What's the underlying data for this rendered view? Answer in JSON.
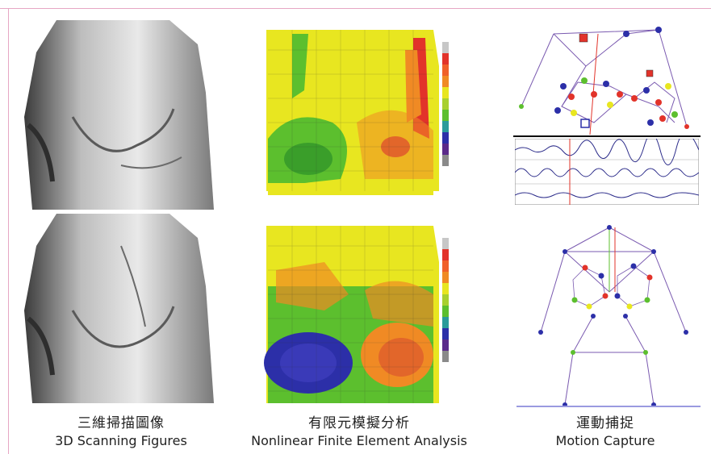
{
  "columns": [
    {
      "caption_zh": "三維掃描圖像",
      "caption_en": "3D Scanning Figures"
    },
    {
      "caption_zh": "有限元模擬分析",
      "caption_en": "Nonlinear Finite Element Analysis"
    },
    {
      "caption_zh": "運動捕捉",
      "caption_en": "Motion Capture"
    }
  ],
  "colors": {
    "frame": "#e6a6c4",
    "fea_green": "#5cbf2e",
    "fea_yellow": "#e8e620",
    "fea_orange": "#f08a24",
    "fea_red": "#e2332a",
    "fea_blue": "#2c2fa8"
  }
}
